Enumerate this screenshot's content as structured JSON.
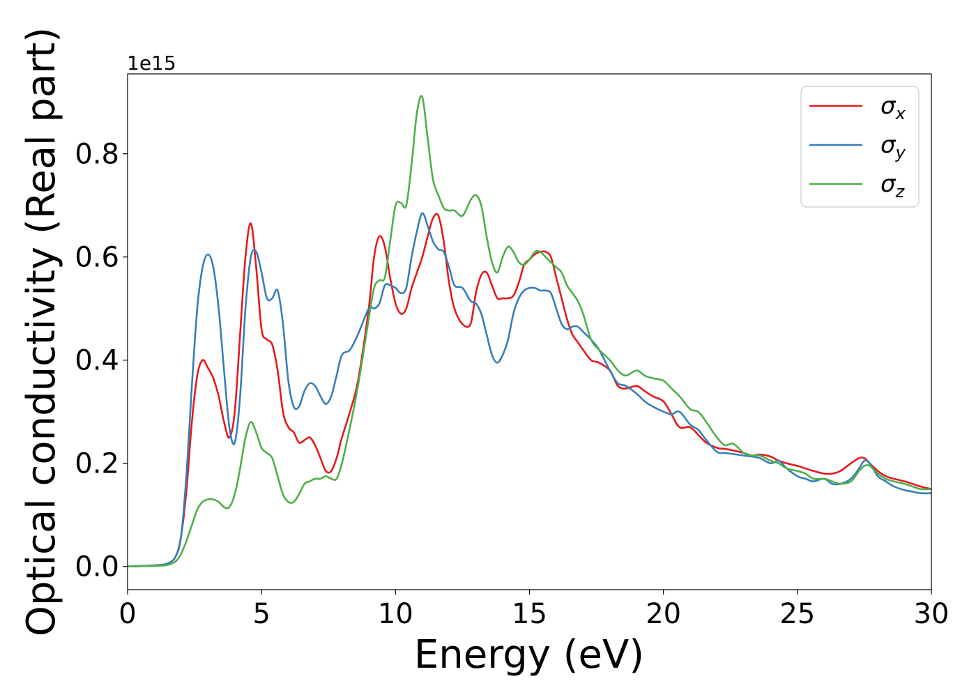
{
  "chart_data": {
    "type": "line",
    "xlabel": "Energy (eV)",
    "ylabel": "Optical conductivity (Real part)",
    "y_offset_label": "1e15",
    "xlim": [
      0,
      30
    ],
    "ylim": [
      -0.045,
      0.955
    ],
    "x_ticks": [
      0,
      5,
      10,
      15,
      20,
      25,
      30
    ],
    "x_tick_labels": [
      "0",
      "5",
      "10",
      "15",
      "20",
      "25",
      "30"
    ],
    "y_ticks": [
      0.0,
      0.2,
      0.4,
      0.6,
      0.8
    ],
    "y_tick_labels": [
      "0.0",
      "0.2",
      "0.4",
      "0.6",
      "0.8"
    ],
    "grid": false,
    "legend_position": "top-right",
    "series": [
      {
        "name": "σx",
        "symbol": "σ",
        "subscript": "x",
        "color": "#e41a1c",
        "x": [
          0,
          1,
          1.5,
          1.8,
          2.0,
          2.2,
          2.4,
          2.6,
          2.8,
          3.0,
          3.2,
          3.4,
          3.6,
          3.8,
          4.0,
          4.2,
          4.4,
          4.6,
          4.8,
          5.0,
          5.2,
          5.4,
          5.6,
          5.8,
          6.0,
          6.2,
          6.4,
          6.6,
          6.8,
          7.0,
          7.2,
          7.4,
          7.6,
          7.8,
          8.0,
          8.3,
          8.6,
          9.0,
          9.2,
          9.4,
          9.6,
          9.8,
          10.0,
          10.2,
          10.4,
          10.6,
          10.8,
          11.0,
          11.2,
          11.4,
          11.6,
          11.8,
          12.0,
          12.2,
          12.5,
          12.8,
          13.0,
          13.2,
          13.4,
          13.6,
          13.8,
          14.0,
          14.2,
          14.4,
          14.6,
          14.8,
          15.0,
          15.2,
          15.4,
          15.6,
          15.8,
          16.0,
          16.2,
          16.4,
          16.6,
          16.8,
          17.0,
          17.3,
          17.6,
          18.0,
          18.3,
          18.6,
          19.0,
          19.3,
          19.6,
          20.0,
          20.3,
          20.6,
          21.0,
          21.3,
          21.6,
          22.0,
          22.3,
          22.6,
          23.0,
          23.3,
          23.6,
          24.0,
          24.3,
          24.6,
          25.0,
          25.3,
          25.6,
          26.0,
          26.3,
          26.6,
          27.0,
          27.3,
          27.5,
          27.7,
          28.0,
          28.3,
          28.6,
          29.0,
          29.3,
          29.6,
          30.0
        ],
        "y": [
          0.0,
          0.002,
          0.006,
          0.02,
          0.06,
          0.15,
          0.28,
          0.37,
          0.4,
          0.385,
          0.365,
          0.33,
          0.28,
          0.25,
          0.3,
          0.45,
          0.6,
          0.665,
          0.58,
          0.46,
          0.44,
          0.43,
          0.38,
          0.3,
          0.27,
          0.26,
          0.24,
          0.245,
          0.25,
          0.235,
          0.21,
          0.185,
          0.185,
          0.21,
          0.25,
          0.3,
          0.36,
          0.5,
          0.6,
          0.64,
          0.62,
          0.56,
          0.51,
          0.49,
          0.5,
          0.54,
          0.57,
          0.6,
          0.64,
          0.675,
          0.68,
          0.63,
          0.55,
          0.5,
          0.47,
          0.47,
          0.53,
          0.565,
          0.57,
          0.545,
          0.52,
          0.52,
          0.52,
          0.525,
          0.55,
          0.585,
          0.595,
          0.605,
          0.61,
          0.61,
          0.6,
          0.56,
          0.52,
          0.48,
          0.45,
          0.435,
          0.42,
          0.4,
          0.395,
          0.38,
          0.35,
          0.345,
          0.35,
          0.34,
          0.33,
          0.32,
          0.295,
          0.27,
          0.27,
          0.255,
          0.24,
          0.23,
          0.228,
          0.225,
          0.22,
          0.215,
          0.217,
          0.213,
          0.205,
          0.2,
          0.195,
          0.19,
          0.185,
          0.18,
          0.18,
          0.185,
          0.2,
          0.21,
          0.21,
          0.2,
          0.185,
          0.175,
          0.17,
          0.165,
          0.16,
          0.155,
          0.15
        ]
      },
      {
        "name": "σy",
        "symbol": "σ",
        "subscript": "y",
        "color": "#377eb8",
        "x": [
          0,
          1,
          1.5,
          1.8,
          2.0,
          2.2,
          2.4,
          2.6,
          2.8,
          3.0,
          3.2,
          3.4,
          3.6,
          3.8,
          4.0,
          4.2,
          4.4,
          4.6,
          4.8,
          5.0,
          5.2,
          5.4,
          5.6,
          5.8,
          6.0,
          6.2,
          6.4,
          6.6,
          6.8,
          7.0,
          7.2,
          7.4,
          7.6,
          7.8,
          8.0,
          8.3,
          8.6,
          9.0,
          9.2,
          9.4,
          9.6,
          9.8,
          10.0,
          10.2,
          10.4,
          10.6,
          10.8,
          11.0,
          11.2,
          11.4,
          11.6,
          11.8,
          12.0,
          12.2,
          12.5,
          12.8,
          13.0,
          13.2,
          13.4,
          13.6,
          13.8,
          14.0,
          14.2,
          14.4,
          14.6,
          14.8,
          15.0,
          15.2,
          15.4,
          15.6,
          15.8,
          16.0,
          16.2,
          16.4,
          16.6,
          16.8,
          17.0,
          17.3,
          17.6,
          18.0,
          18.3,
          18.6,
          19.0,
          19.3,
          19.6,
          20.0,
          20.3,
          20.6,
          21.0,
          21.3,
          21.6,
          22.0,
          22.3,
          22.6,
          23.0,
          23.3,
          23.6,
          24.0,
          24.3,
          24.6,
          25.0,
          25.3,
          25.6,
          26.0,
          26.3,
          26.6,
          27.0,
          27.3,
          27.5,
          27.7,
          28.0,
          28.3,
          28.6,
          29.0,
          29.3,
          29.6,
          30.0
        ],
        "y": [
          0.0,
          0.002,
          0.006,
          0.02,
          0.06,
          0.18,
          0.35,
          0.5,
          0.58,
          0.605,
          0.58,
          0.5,
          0.38,
          0.27,
          0.24,
          0.33,
          0.5,
          0.6,
          0.61,
          0.57,
          0.52,
          0.52,
          0.535,
          0.47,
          0.36,
          0.31,
          0.31,
          0.34,
          0.355,
          0.35,
          0.33,
          0.315,
          0.33,
          0.37,
          0.41,
          0.42,
          0.45,
          0.5,
          0.5,
          0.51,
          0.545,
          0.545,
          0.54,
          0.53,
          0.54,
          0.6,
          0.65,
          0.685,
          0.66,
          0.63,
          0.615,
          0.61,
          0.58,
          0.545,
          0.54,
          0.515,
          0.51,
          0.49,
          0.45,
          0.41,
          0.395,
          0.41,
          0.44,
          0.49,
          0.52,
          0.535,
          0.54,
          0.54,
          0.535,
          0.535,
          0.53,
          0.5,
          0.47,
          0.46,
          0.465,
          0.465,
          0.455,
          0.44,
          0.42,
          0.38,
          0.355,
          0.35,
          0.335,
          0.32,
          0.31,
          0.3,
          0.295,
          0.3,
          0.275,
          0.265,
          0.245,
          0.222,
          0.22,
          0.218,
          0.215,
          0.213,
          0.21,
          0.2,
          0.205,
          0.19,
          0.175,
          0.17,
          0.165,
          0.17,
          0.16,
          0.16,
          0.17,
          0.19,
          0.205,
          0.2,
          0.175,
          0.165,
          0.155,
          0.148,
          0.145,
          0.142,
          0.142
        ]
      },
      {
        "name": "σz",
        "symbol": "σ",
        "subscript": "z",
        "color": "#4daf4a",
        "x": [
          0,
          1,
          1.5,
          1.8,
          2.0,
          2.2,
          2.4,
          2.6,
          2.8,
          3.0,
          3.2,
          3.4,
          3.6,
          3.8,
          4.0,
          4.2,
          4.4,
          4.6,
          4.8,
          5.0,
          5.2,
          5.4,
          5.6,
          5.8,
          6.0,
          6.2,
          6.4,
          6.6,
          6.8,
          7.0,
          7.2,
          7.4,
          7.6,
          7.8,
          8.0,
          8.3,
          8.6,
          9.0,
          9.2,
          9.4,
          9.6,
          9.8,
          10.0,
          10.2,
          10.4,
          10.6,
          10.8,
          11.0,
          11.2,
          11.4,
          11.6,
          11.8,
          12.0,
          12.2,
          12.5,
          12.8,
          13.0,
          13.2,
          13.4,
          13.6,
          13.8,
          14.0,
          14.2,
          14.4,
          14.6,
          14.8,
          15.0,
          15.2,
          15.4,
          15.6,
          15.8,
          16.0,
          16.2,
          16.4,
          16.6,
          16.8,
          17.0,
          17.3,
          17.6,
          18.0,
          18.3,
          18.6,
          19.0,
          19.3,
          19.6,
          20.0,
          20.3,
          20.6,
          21.0,
          21.3,
          21.6,
          22.0,
          22.3,
          22.6,
          23.0,
          23.3,
          23.6,
          24.0,
          24.3,
          24.6,
          25.0,
          25.3,
          25.6,
          26.0,
          26.3,
          26.6,
          27.0,
          27.3,
          27.5,
          27.7,
          28.0,
          28.3,
          28.6,
          29.0,
          29.3,
          29.6,
          30.0
        ],
        "y": [
          0.0,
          0.001,
          0.003,
          0.01,
          0.025,
          0.05,
          0.08,
          0.11,
          0.125,
          0.13,
          0.13,
          0.125,
          0.115,
          0.115,
          0.14,
          0.19,
          0.25,
          0.28,
          0.26,
          0.23,
          0.22,
          0.21,
          0.175,
          0.14,
          0.125,
          0.125,
          0.14,
          0.16,
          0.165,
          0.17,
          0.17,
          0.175,
          0.17,
          0.17,
          0.2,
          0.27,
          0.35,
          0.48,
          0.54,
          0.555,
          0.56,
          0.63,
          0.7,
          0.705,
          0.7,
          0.78,
          0.88,
          0.91,
          0.83,
          0.75,
          0.72,
          0.695,
          0.69,
          0.69,
          0.68,
          0.71,
          0.72,
          0.7,
          0.64,
          0.59,
          0.57,
          0.6,
          0.62,
          0.61,
          0.59,
          0.585,
          0.595,
          0.61,
          0.61,
          0.6,
          0.59,
          0.58,
          0.57,
          0.545,
          0.53,
          0.515,
          0.49,
          0.44,
          0.42,
          0.4,
          0.38,
          0.37,
          0.38,
          0.37,
          0.365,
          0.36,
          0.345,
          0.33,
          0.305,
          0.3,
          0.28,
          0.25,
          0.235,
          0.238,
          0.22,
          0.215,
          0.215,
          0.205,
          0.2,
          0.19,
          0.185,
          0.18,
          0.17,
          0.17,
          0.165,
          0.16,
          0.165,
          0.185,
          0.195,
          0.195,
          0.18,
          0.17,
          0.165,
          0.16,
          0.155,
          0.15,
          0.15
        ]
      }
    ]
  }
}
